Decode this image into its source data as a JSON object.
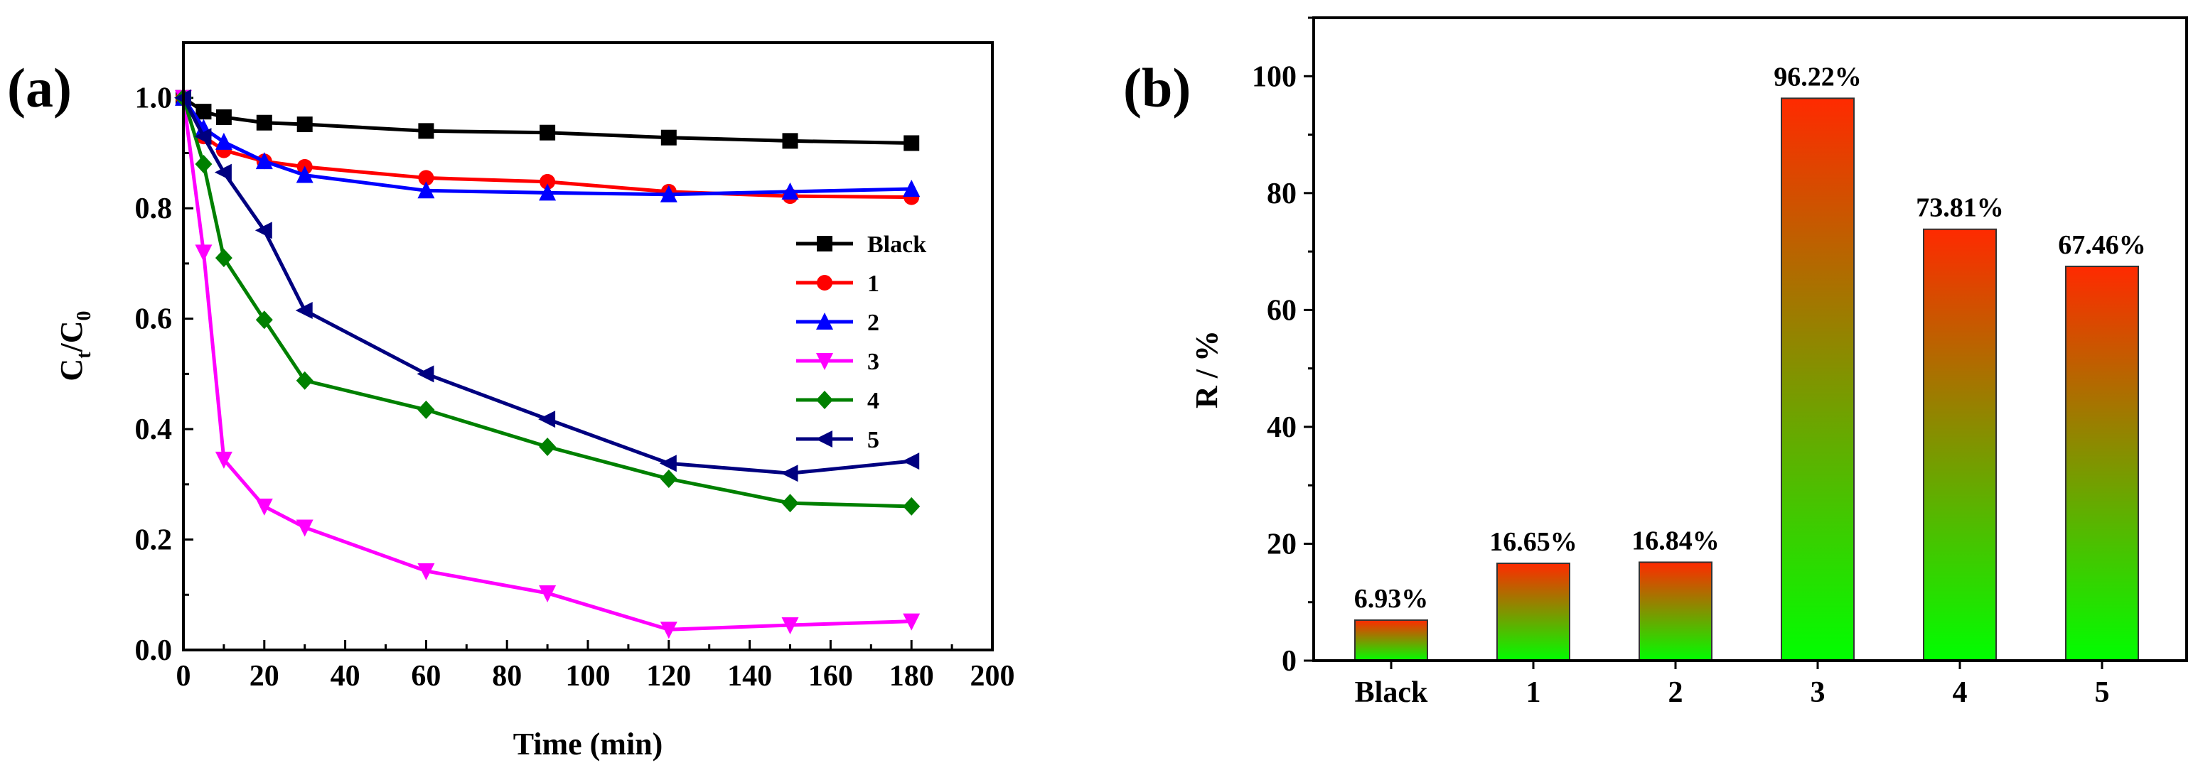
{
  "panel_labels": {
    "a": "(a)",
    "b": "(b)"
  },
  "chart_data": [
    {
      "type": "line",
      "panel": "(a)",
      "title": "",
      "xlabel": "Time (min)",
      "ylabel": {
        "main_1": "C",
        "sub_1": "t",
        "slash": "/",
        "main_2": "C",
        "sub_2": "0"
      },
      "xlim": [
        0,
        200
      ],
      "ylim": [
        0.0,
        1.1
      ],
      "x_ticks": [
        "0",
        "20",
        "40",
        "60",
        "80",
        "100",
        "120",
        "140",
        "160",
        "180",
        "200"
      ],
      "y_ticks": [
        "0.0",
        "0.2",
        "0.4",
        "0.6",
        "0.8",
        "1.0"
      ],
      "x": [
        0,
        5,
        10,
        20,
        30,
        60,
        90,
        120,
        150,
        180
      ],
      "legend_position": "right-middle",
      "series": [
        {
          "name": "Black",
          "color": "#000000",
          "marker": "square",
          "values": [
            1.0,
            0.975,
            0.965,
            0.955,
            0.952,
            0.94,
            0.937,
            0.928,
            0.922,
            0.918
          ]
        },
        {
          "name": "1",
          "color": "#ff0000",
          "marker": "circle",
          "values": [
            1.0,
            0.93,
            0.905,
            0.885,
            0.875,
            0.855,
            0.848,
            0.83,
            0.822,
            0.82
          ]
        },
        {
          "name": "2",
          "color": "#0000ff",
          "marker": "triangle-up",
          "values": [
            1.0,
            0.945,
            0.92,
            0.885,
            0.86,
            0.832,
            0.828,
            0.825,
            0.83,
            0.835
          ]
        },
        {
          "name": "3",
          "color": "#ff00ff",
          "marker": "triangle-down",
          "values": [
            1.0,
            0.72,
            0.345,
            0.26,
            0.222,
            0.143,
            0.103,
            0.037,
            0.045,
            0.052
          ]
        },
        {
          "name": "4",
          "color": "#008000",
          "marker": "diamond",
          "values": [
            1.0,
            0.88,
            0.71,
            0.598,
            0.488,
            0.435,
            0.368,
            0.31,
            0.266,
            0.26
          ]
        },
        {
          "name": "5",
          "color": "#000080",
          "marker": "triangle-left",
          "values": [
            1.0,
            0.93,
            0.865,
            0.76,
            0.615,
            0.5,
            0.418,
            0.338,
            0.32,
            0.342
          ]
        }
      ]
    },
    {
      "type": "bar",
      "panel": "(b)",
      "title": "",
      "xlabel": "",
      "ylabel": "R / %",
      "ylim": [
        0,
        110
      ],
      "y_ticks": [
        "0",
        "20",
        "40",
        "60",
        "80",
        "100"
      ],
      "categories": [
        "Black",
        "1",
        "2",
        "3",
        "4",
        "5"
      ],
      "values": [
        6.93,
        16.65,
        16.84,
        96.22,
        73.81,
        67.46
      ],
      "data_labels": [
        "6.93%",
        "16.65%",
        "16.84%",
        "96.22%",
        "73.81%",
        "67.46%"
      ],
      "gradient": {
        "top": "#ff2a00",
        "bottom": "#00ff00"
      }
    }
  ]
}
